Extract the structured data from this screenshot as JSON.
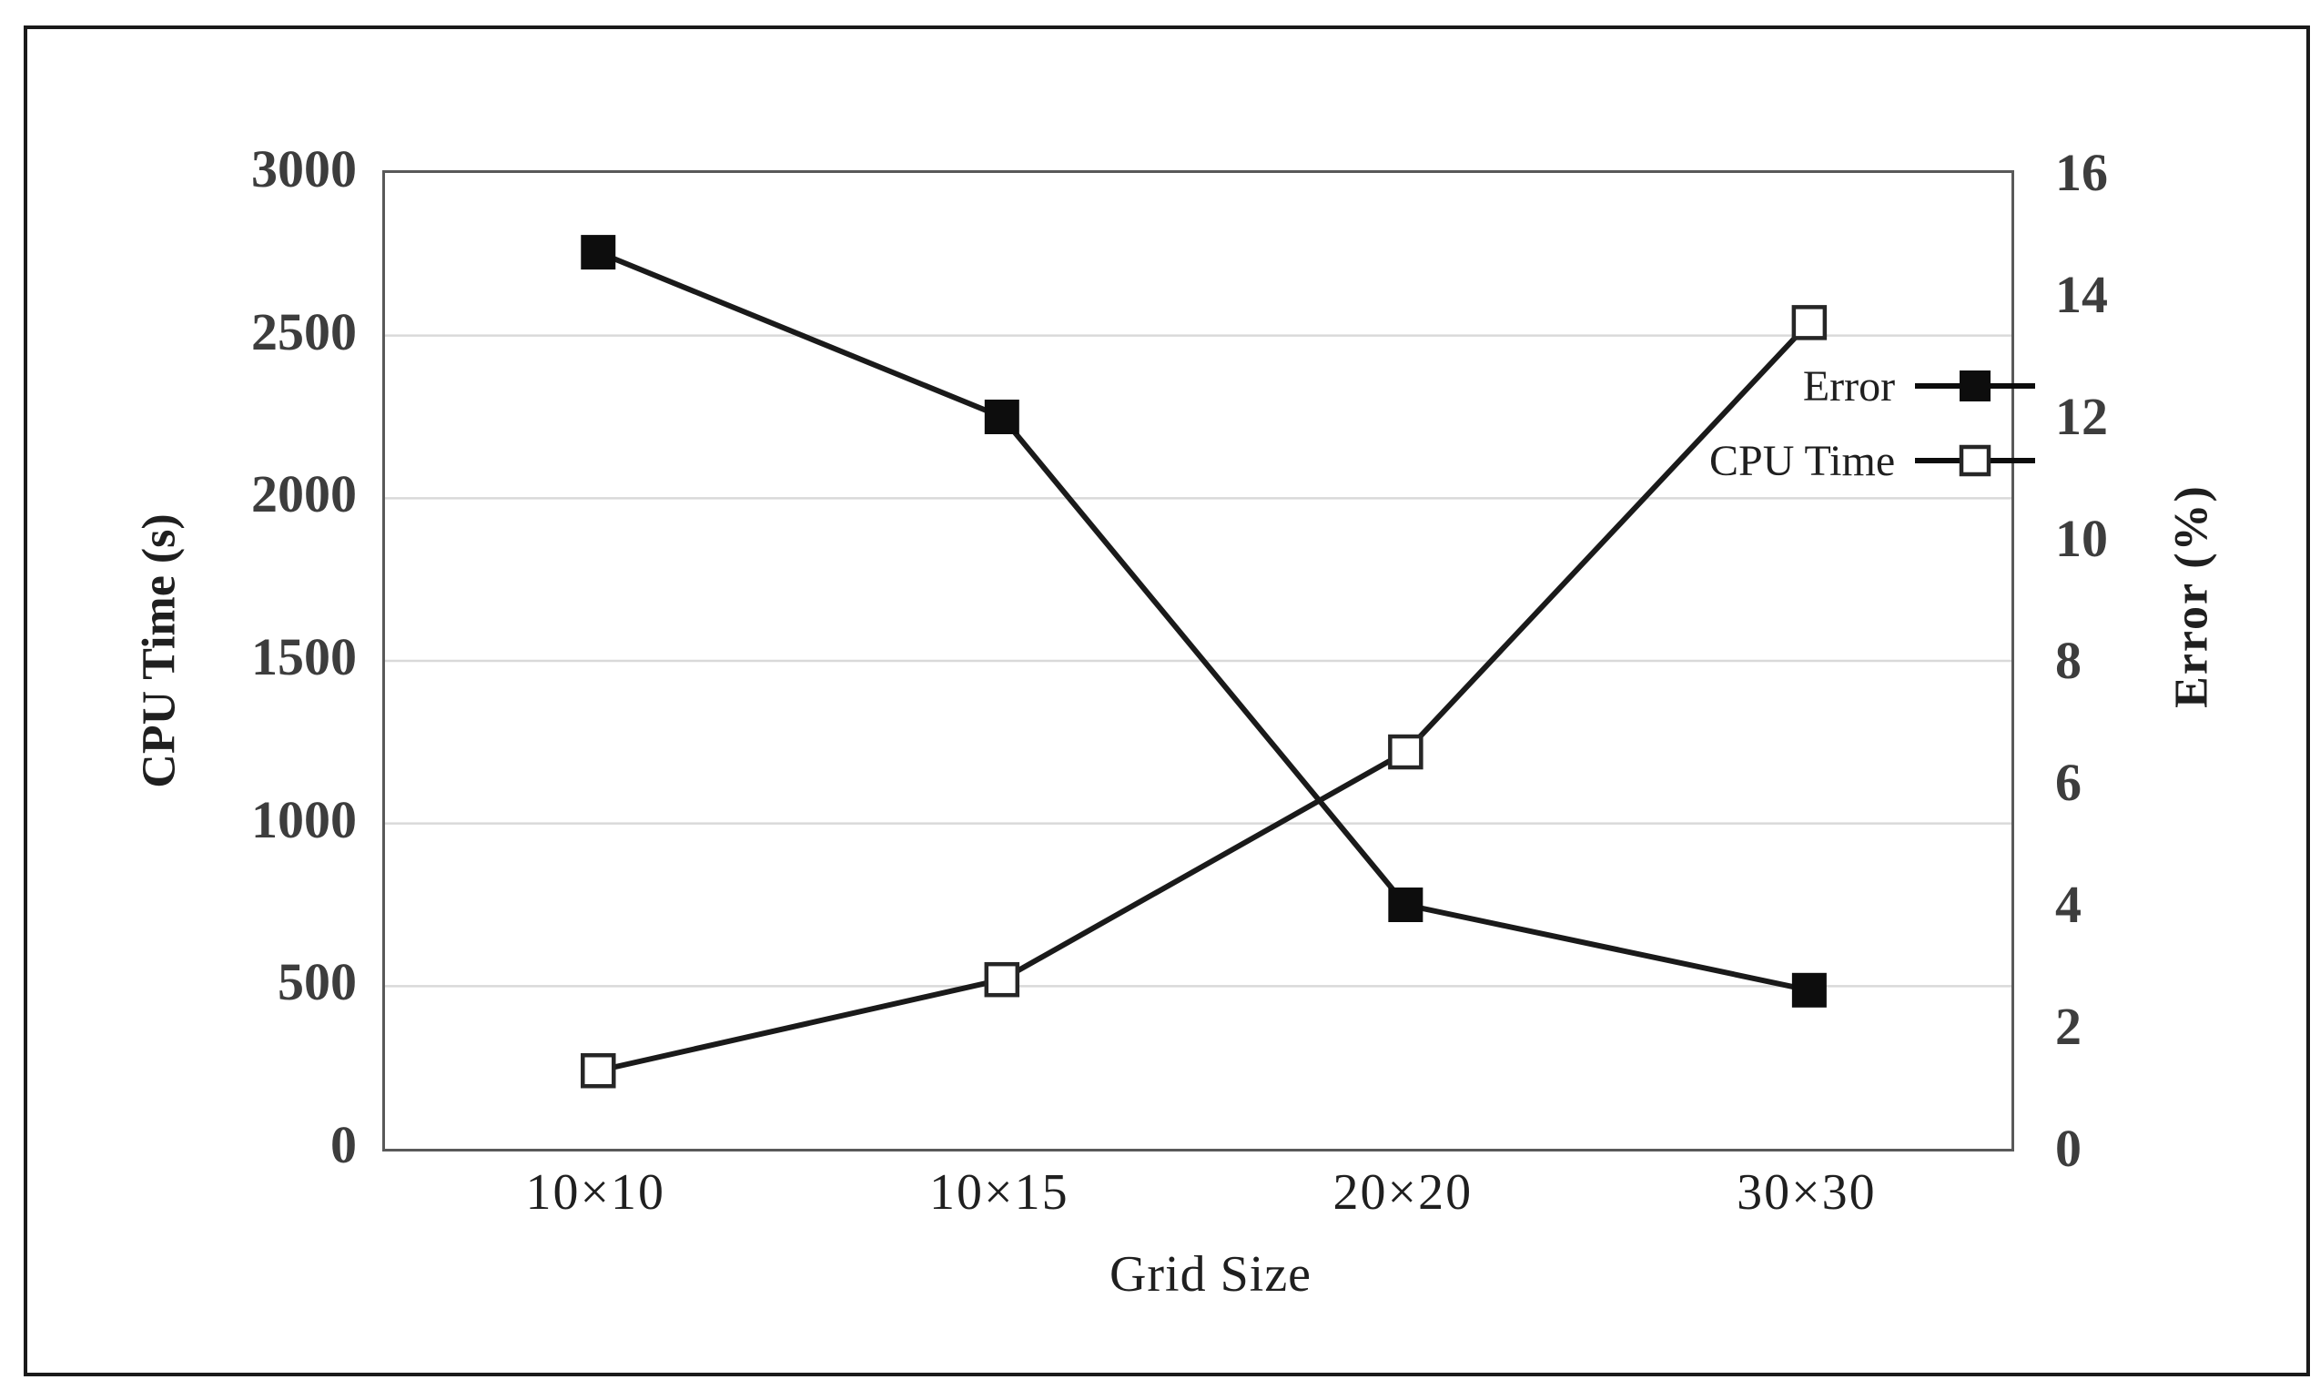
{
  "figure": {
    "x_axis_title": "Grid Size",
    "y_left_axis_title": "CPU Time (s)",
    "y_right_axis_title": "Error  (%)"
  },
  "legend": [
    {
      "label": "Error",
      "marker": "filled-square-on-line"
    },
    {
      "label": "CPU Time",
      "marker": "open-square-on-line"
    }
  ],
  "chart_data": {
    "type": "line",
    "categories": [
      "10×10",
      "10×15",
      "20×20",
      "30×30"
    ],
    "series": [
      {
        "name": "Error",
        "axis": "right",
        "marker": "filled-square",
        "color": "#0d0d0d",
        "values": [
          14.7,
          12.0,
          4.0,
          2.6
        ]
      },
      {
        "name": "CPU Time",
        "axis": "left",
        "marker": "open-square",
        "color": "#0d0d0d",
        "values": [
          240,
          520,
          1220,
          2540
        ]
      }
    ],
    "title": "",
    "xlabel": "Grid Size",
    "ylabel_left": "CPU Time (s)",
    "ylabel_right": "Error (%)",
    "y_left": {
      "min": 0,
      "max": 3000,
      "ticks": [
        0,
        500,
        1000,
        1500,
        2000,
        2500,
        3000
      ]
    },
    "y_right": {
      "min": 0,
      "max": 16,
      "ticks": [
        0,
        2,
        4,
        6,
        8,
        10,
        12,
        14,
        16
      ]
    },
    "grid": "horizontal gridlines at left-axis ticks",
    "gridline_color": "#d9d9d9",
    "frame_color": "#595959",
    "line_color": "#1a1a1a",
    "legend_position": "top-right inside plot"
  }
}
